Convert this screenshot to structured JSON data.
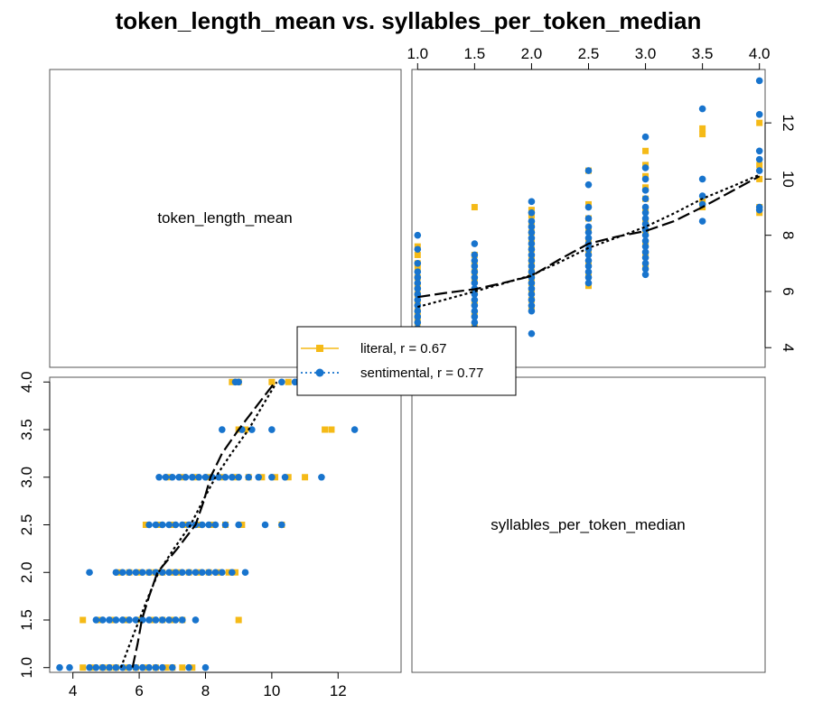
{
  "colors": {
    "literal": "#F5BA17",
    "sentimental": "#1874CD",
    "trend": "#000000",
    "panel_border": "#555555"
  },
  "chart_data": {
    "type": "scatter",
    "title": "token_length_mean vs. syllables_per_token_median",
    "variables": [
      "token_length_mean",
      "syllables_per_token_median"
    ],
    "ranges": {
      "token_length_mean": [
        3.3,
        13.9
      ],
      "syllables_per_token_median": [
        0.95,
        4.05
      ]
    },
    "ticks": {
      "token_length_mean": [
        4,
        6,
        8,
        10,
        12
      ],
      "syllables_per_token_median": [
        1.0,
        1.5,
        2.0,
        2.5,
        3.0,
        3.5,
        4.0
      ]
    },
    "tick_labels": {
      "token_length_mean": [
        "4",
        "6",
        "8",
        "10",
        "12"
      ],
      "syllables_per_token_median": [
        "1.0",
        "1.5",
        "2.0",
        "2.5",
        "3.0",
        "3.5",
        "4.0"
      ]
    },
    "legend": {
      "placement": "center",
      "entries": [
        {
          "key": "literal",
          "label": "literal, r = 0.67",
          "marker": "square",
          "line": "solid"
        },
        {
          "key": "sentimental",
          "label": "sentimental, r = 0.77",
          "marker": "circle",
          "line": "dotted"
        }
      ]
    },
    "series": [
      {
        "key": "literal",
        "name": "literal",
        "points": [
          [
            4.3,
            1.0
          ],
          [
            4.6,
            1.0
          ],
          [
            4.9,
            1.0
          ],
          [
            5.1,
            1.0
          ],
          [
            5.3,
            1.0
          ],
          [
            5.6,
            1.0
          ],
          [
            5.9,
            1.0
          ],
          [
            6.2,
            1.0
          ],
          [
            6.5,
            1.0
          ],
          [
            6.8,
            1.0
          ],
          [
            7.0,
            1.0
          ],
          [
            7.3,
            1.0
          ],
          [
            7.6,
            1.0
          ],
          [
            4.3,
            1.5
          ],
          [
            4.8,
            1.5
          ],
          [
            5.2,
            1.5
          ],
          [
            5.6,
            1.5
          ],
          [
            6.0,
            1.5
          ],
          [
            6.4,
            1.5
          ],
          [
            6.7,
            1.5
          ],
          [
            7.0,
            1.5
          ],
          [
            7.3,
            1.5
          ],
          [
            9.0,
            1.5
          ],
          [
            5.4,
            2.0
          ],
          [
            5.7,
            2.0
          ],
          [
            6.0,
            2.0
          ],
          [
            6.3,
            2.0
          ],
          [
            6.5,
            2.0
          ],
          [
            6.7,
            2.0
          ],
          [
            7.0,
            2.0
          ],
          [
            7.2,
            2.0
          ],
          [
            7.5,
            2.0
          ],
          [
            7.8,
            2.0
          ],
          [
            8.1,
            2.0
          ],
          [
            8.4,
            2.0
          ],
          [
            8.7,
            2.0
          ],
          [
            8.9,
            2.0
          ],
          [
            6.2,
            2.5
          ],
          [
            6.6,
            2.5
          ],
          [
            7.0,
            2.5
          ],
          [
            7.4,
            2.5
          ],
          [
            7.8,
            2.5
          ],
          [
            8.2,
            2.5
          ],
          [
            8.6,
            2.5
          ],
          [
            9.1,
            2.5
          ],
          [
            10.3,
            2.5
          ],
          [
            6.9,
            3.0
          ],
          [
            7.3,
            3.0
          ],
          [
            7.7,
            3.0
          ],
          [
            8.1,
            3.0
          ],
          [
            8.5,
            3.0
          ],
          [
            8.9,
            3.0
          ],
          [
            9.3,
            3.0
          ],
          [
            9.7,
            3.0
          ],
          [
            10.1,
            3.0
          ],
          [
            10.5,
            3.0
          ],
          [
            11.0,
            3.0
          ],
          [
            9.0,
            3.5
          ],
          [
            9.2,
            3.5
          ],
          [
            11.6,
            3.5
          ],
          [
            11.8,
            3.5
          ],
          [
            8.8,
            4.0
          ],
          [
            9.0,
            4.0
          ],
          [
            10.0,
            4.0
          ],
          [
            10.5,
            4.0
          ],
          [
            12.0,
            4.0
          ]
        ]
      },
      {
        "key": "sentimental",
        "name": "sentimental",
        "points": [
          [
            3.6,
            1.0
          ],
          [
            3.9,
            1.0
          ],
          [
            4.5,
            1.0
          ],
          [
            4.7,
            1.0
          ],
          [
            4.9,
            1.0
          ],
          [
            5.1,
            1.0
          ],
          [
            5.3,
            1.0
          ],
          [
            5.5,
            1.0
          ],
          [
            5.7,
            1.0
          ],
          [
            5.9,
            1.0
          ],
          [
            6.1,
            1.0
          ],
          [
            6.3,
            1.0
          ],
          [
            6.5,
            1.0
          ],
          [
            6.7,
            1.0
          ],
          [
            7.0,
            1.0
          ],
          [
            7.5,
            1.0
          ],
          [
            8.0,
            1.0
          ],
          [
            4.7,
            1.5
          ],
          [
            4.9,
            1.5
          ],
          [
            5.1,
            1.5
          ],
          [
            5.3,
            1.5
          ],
          [
            5.5,
            1.5
          ],
          [
            5.7,
            1.5
          ],
          [
            5.9,
            1.5
          ],
          [
            6.1,
            1.5
          ],
          [
            6.3,
            1.5
          ],
          [
            6.5,
            1.5
          ],
          [
            6.7,
            1.5
          ],
          [
            6.9,
            1.5
          ],
          [
            7.1,
            1.5
          ],
          [
            7.3,
            1.5
          ],
          [
            7.7,
            1.5
          ],
          [
            4.5,
            2.0
          ],
          [
            5.3,
            2.0
          ],
          [
            5.5,
            2.0
          ],
          [
            5.7,
            2.0
          ],
          [
            5.9,
            2.0
          ],
          [
            6.1,
            2.0
          ],
          [
            6.3,
            2.0
          ],
          [
            6.5,
            2.0
          ],
          [
            6.7,
            2.0
          ],
          [
            6.9,
            2.0
          ],
          [
            7.1,
            2.0
          ],
          [
            7.3,
            2.0
          ],
          [
            7.5,
            2.0
          ],
          [
            7.7,
            2.0
          ],
          [
            7.9,
            2.0
          ],
          [
            8.1,
            2.0
          ],
          [
            8.3,
            2.0
          ],
          [
            8.5,
            2.0
          ],
          [
            8.8,
            2.0
          ],
          [
            9.2,
            2.0
          ],
          [
            6.3,
            2.5
          ],
          [
            6.5,
            2.5
          ],
          [
            6.7,
            2.5
          ],
          [
            6.9,
            2.5
          ],
          [
            7.1,
            2.5
          ],
          [
            7.3,
            2.5
          ],
          [
            7.5,
            2.5
          ],
          [
            7.7,
            2.5
          ],
          [
            7.9,
            2.5
          ],
          [
            8.1,
            2.5
          ],
          [
            8.3,
            2.5
          ],
          [
            8.6,
            2.5
          ],
          [
            9.0,
            2.5
          ],
          [
            9.8,
            2.5
          ],
          [
            10.3,
            2.5
          ],
          [
            6.6,
            3.0
          ],
          [
            6.8,
            3.0
          ],
          [
            7.0,
            3.0
          ],
          [
            7.2,
            3.0
          ],
          [
            7.4,
            3.0
          ],
          [
            7.6,
            3.0
          ],
          [
            7.8,
            3.0
          ],
          [
            8.0,
            3.0
          ],
          [
            8.2,
            3.0
          ],
          [
            8.4,
            3.0
          ],
          [
            8.6,
            3.0
          ],
          [
            8.8,
            3.0
          ],
          [
            9.0,
            3.0
          ],
          [
            9.3,
            3.0
          ],
          [
            9.6,
            3.0
          ],
          [
            10.0,
            3.0
          ],
          [
            10.4,
            3.0
          ],
          [
            11.5,
            3.0
          ],
          [
            8.5,
            3.5
          ],
          [
            9.1,
            3.5
          ],
          [
            9.4,
            3.5
          ],
          [
            10.0,
            3.5
          ],
          [
            12.5,
            3.5
          ],
          [
            8.9,
            4.0
          ],
          [
            9.0,
            4.0
          ],
          [
            10.3,
            4.0
          ],
          [
            10.7,
            4.0
          ],
          [
            11.0,
            4.0
          ],
          [
            12.3,
            4.0
          ],
          [
            13.5,
            4.0
          ]
        ]
      }
    ],
    "trend_lines": [
      {
        "key": "literal",
        "style": "dashed",
        "curve": [
          [
            1.0,
            5.8
          ],
          [
            1.25,
            5.95
          ],
          [
            1.5,
            6.08
          ],
          [
            1.75,
            6.3
          ],
          [
            2.0,
            6.55
          ],
          [
            2.25,
            7.15
          ],
          [
            2.5,
            7.7
          ],
          [
            2.75,
            7.95
          ],
          [
            3.0,
            8.15
          ],
          [
            3.25,
            8.5
          ],
          [
            3.5,
            9.0
          ],
          [
            3.75,
            9.55
          ],
          [
            4.0,
            10.1
          ]
        ]
      },
      {
        "key": "sentimental",
        "style": "dotted",
        "curve": [
          [
            1.0,
            5.45
          ],
          [
            1.25,
            5.72
          ],
          [
            1.5,
            6.0
          ],
          [
            1.75,
            6.28
          ],
          [
            2.0,
            6.58
          ],
          [
            2.25,
            7.05
          ],
          [
            2.5,
            7.55
          ],
          [
            2.75,
            7.92
          ],
          [
            3.0,
            8.3
          ],
          [
            3.25,
            8.78
          ],
          [
            3.5,
            9.3
          ],
          [
            3.75,
            9.72
          ],
          [
            4.0,
            10.15
          ]
        ]
      }
    ]
  }
}
